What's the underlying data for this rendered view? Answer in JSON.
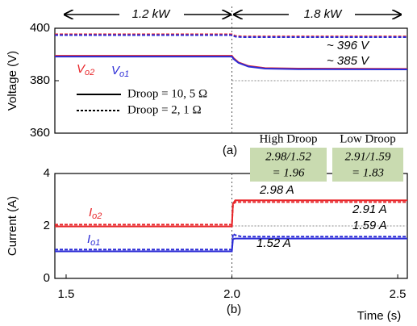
{
  "chart_data": [
    {
      "type": "line",
      "ylabel": "Voltage (V)",
      "ylim": [
        360,
        400
      ],
      "yticks": [
        360,
        380,
        400
      ],
      "xlim": [
        1.466,
        2.529
      ],
      "vline": 2,
      "reference_line": 380,
      "header": [
        "1.2 kW",
        "1.8 kW"
      ],
      "legend": [
        {
          "name": "Droop = 10, 5 Ω",
          "dash": false
        },
        {
          "name": "Droop = 2, 1 Ω",
          "dash": true
        }
      ],
      "series": [
        {
          "label": {
            "main": "V",
            "sub": "o2"
          },
          "color": "#e8262a",
          "dash": false,
          "x": [
            1.466,
            2.0,
            2.005,
            2.02,
            2.05,
            2.1,
            2.2,
            2.529
          ],
          "values": [
            389.5,
            389.5,
            388.6,
            387.0,
            385.6,
            384.8,
            384.6,
            384.5
          ]
        },
        {
          "label": {
            "main": "V",
            "sub": "o1"
          },
          "color": "#2b2bd6",
          "dash": false,
          "x": [
            1.466,
            2.0,
            2.005,
            2.02,
            2.05,
            2.1,
            2.2,
            2.529
          ],
          "values": [
            389.2,
            389.2,
            388.3,
            386.8,
            385.4,
            384.6,
            384.4,
            384.3
          ]
        },
        {
          "color": "#e8262a",
          "dash": true,
          "x": [
            1.466,
            2.0,
            2.01,
            2.03,
            2.529
          ],
          "values": [
            397.7,
            397.7,
            397.1,
            396.9,
            396.9
          ]
        },
        {
          "color": "#2b2bd6",
          "dash": true,
          "x": [
            1.466,
            2.0,
            2.01,
            2.03,
            2.529
          ],
          "values": [
            397.4,
            397.4,
            396.8,
            396.6,
            396.6
          ]
        }
      ],
      "labels": [
        "~ 396 V",
        "~ 385 V"
      ],
      "caption": "(a)"
    },
    {
      "type": "line",
      "ylabel": "Current (A)",
      "ylim": [
        0,
        4
      ],
      "yticks": [
        0,
        2,
        4
      ],
      "xlim": [
        1.466,
        2.529
      ],
      "xticks": [
        1.5,
        {
          "value": 2,
          "label": "2.0"
        },
        2.5
      ],
      "xlabel": "Time (s)",
      "vline": 2,
      "reference_line": 2,
      "series": [
        {
          "label": {
            "main": "I",
            "sub": "o2"
          },
          "color": "#e8262a",
          "dash": false,
          "x": [
            1.466,
            2.0,
            2.003,
            2.01,
            2.529
          ],
          "values": [
            1.98,
            1.98,
            2.85,
            2.98,
            2.98
          ]
        },
        {
          "label": {
            "main": "I",
            "sub": "o1"
          },
          "color": "#2b2bd6",
          "dash": false,
          "x": [
            1.466,
            2.0,
            2.003,
            2.01,
            2.529
          ],
          "values": [
            1.03,
            1.03,
            1.5,
            1.52,
            1.52
          ]
        },
        {
          "color": "#e8262a",
          "dash": true,
          "x": [
            1.466,
            2.0,
            2.003,
            2.01,
            2.529
          ],
          "values": [
            2.05,
            2.05,
            2.8,
            2.91,
            2.91
          ]
        },
        {
          "color": "#2b2bd6",
          "dash": true,
          "x": [
            1.466,
            2.0,
            2.003,
            2.01,
            2.03,
            2.529
          ],
          "values": [
            1.1,
            1.1,
            1.7,
            1.65,
            1.59,
            1.59
          ]
        }
      ],
      "boxes": [
        {
          "title": "High Droop",
          "lines": [
            "2.98/1.52",
            "= 1.96"
          ]
        },
        {
          "title": "Low Droop",
          "lines": [
            "2.91/1.59",
            "= 1.83"
          ]
        }
      ],
      "labels": [
        "2.98 A",
        "2.91 A",
        "1.59 A",
        "1.52 A"
      ],
      "caption": "(b)"
    }
  ]
}
